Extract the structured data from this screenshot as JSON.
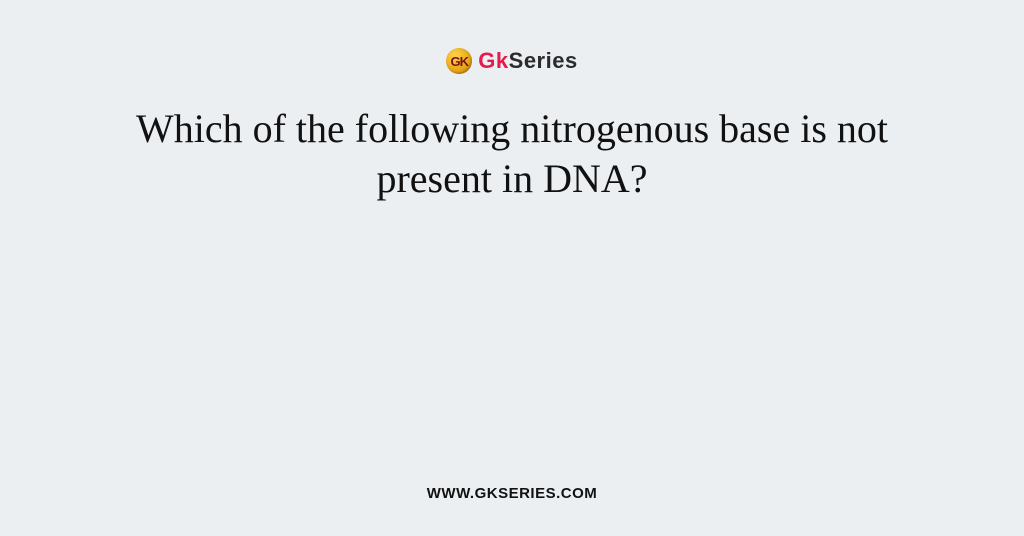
{
  "background_color": "#eceff2",
  "logo": {
    "badge_text": "GK",
    "badge_gradient": [
      "#ffd24a",
      "#e6a617",
      "#b8760c"
    ],
    "badge_text_color": "#7a1212",
    "brand_gk": "Gk",
    "brand_series": "Series",
    "gk_color": "#e8194b",
    "series_color": "#2b2b2b",
    "font_size": 22
  },
  "question": {
    "text": "Which of the following nitrogenous base is not present in DNA?",
    "font_size": 40,
    "color": "#111111",
    "font_family": "Georgia"
  },
  "footer": {
    "url": "WWW.GKSERIES.COM",
    "font_size": 15,
    "color": "#111111"
  }
}
